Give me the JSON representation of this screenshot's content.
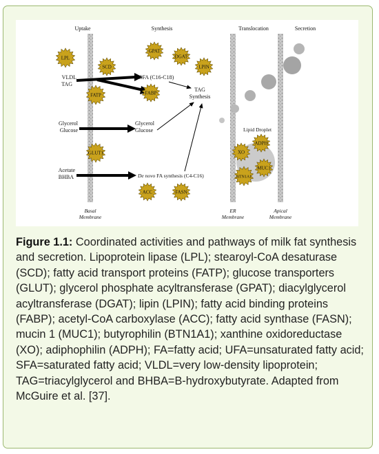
{
  "figure": {
    "headers": {
      "uptake": "Uptake",
      "synthesis": "Synthesis",
      "translocation": "Translocation",
      "secretion": "Secretion"
    },
    "proteins": {
      "lpl": "LPL",
      "scd": "SCD",
      "gpat": "GPAT",
      "dgat": "DGAT",
      "lpin": "LPIN",
      "fatp": "FATP",
      "fabp": "FABP",
      "glut": "GLUT1",
      "acc": "ACC",
      "fasn": "FASN",
      "adph": "ADPH",
      "xo": "XO",
      "muc1": "MUC1",
      "btn1a1": "BTN1A1"
    },
    "substrates": {
      "vldl": "VLDL",
      "tag": "TAG",
      "glycerol": "Glycerol",
      "glucose": "Glucose",
      "acetate": "Acetate",
      "bhba": "BHBA"
    },
    "products": {
      "sfa": "SFA (C16-C18)",
      "glycerol": "Glycerol",
      "glucose": "Glucose",
      "de_novo_italic": "De novo",
      "de_novo_rest": "FA synthesis (C4-C16)",
      "tag_l1": "TAG",
      "tag_l2": "Synthesis",
      "lipid_droplet": "Lipid Droplet"
    },
    "membranes": {
      "basal_l1": "Basal",
      "basal_l2": "Membrane",
      "er_l1": "ER",
      "er_l2": "Membrane",
      "apical_l1": "Apical",
      "apical_l2": "Membrane"
    }
  },
  "caption": {
    "label": "Figure 1.1:",
    "text": "Coordinated activities and pathways of milk fat synthesis and secretion. Lipoprotein lipase (LPL); stearoyl-CoA desaturase (SCD); fatty acid transport proteins (FATP); glucose transporters (GLUT); glycerol phosphate acyltransferase (GPAT); diacylglycerol acyltransferase (DGAT); lipin (LPIN); fatty acid binding proteins (FABP); acetyl-CoA carboxylase (ACC); fatty acid synthase (FASN); mucin 1 (MUC1); butyrophilin (BTN1A1); xanthine oxidoreductase (XO); adiphophilin (ADPH); FA=fatty acid; UFA=unsaturated fatty acid; SFA=saturated fatty acid; VLDL=very low-density lipoprotein; TAG=triacylglycerol and BHBA=B-hydroxybutyrate. Adapted from McGuire et al. [37]."
  }
}
